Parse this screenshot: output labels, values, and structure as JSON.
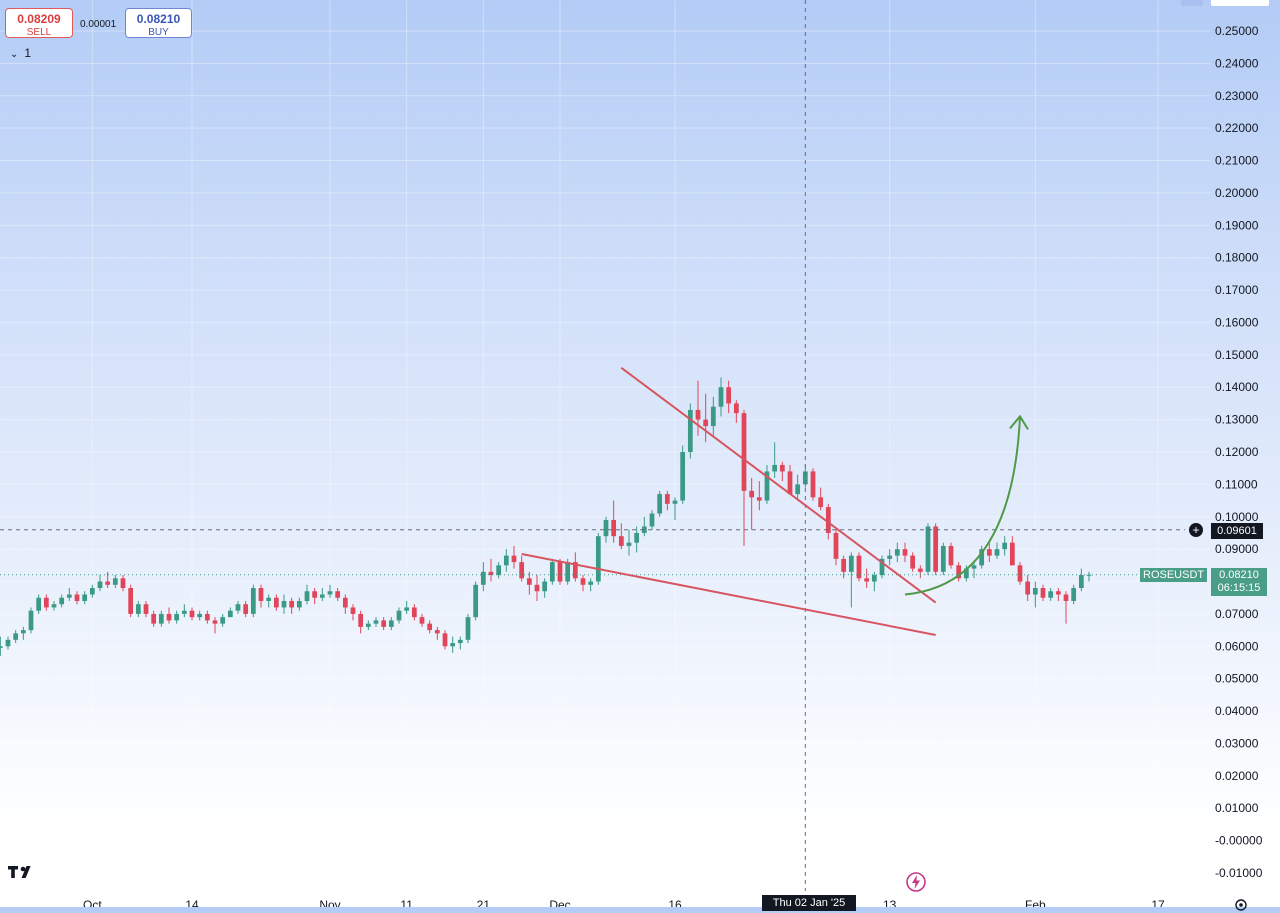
{
  "trade": {
    "sell_price": "0.08209",
    "sell_label": "SELL",
    "spread": "0.00001",
    "buy_price": "0.08210",
    "buy_label": "BUY",
    "interval": "1"
  },
  "symbol": "ROSEUSDT",
  "last_price": "0.08210",
  "countdown": "06:15:15",
  "crosshair": {
    "price": "0.09601",
    "date": "Thu 02 Jan '25"
  },
  "colors": {
    "up": "#3b9a86",
    "down": "#e0455a",
    "trendline": "#d65560",
    "arrow": "#4f9a47",
    "tag_green": "#4a9e88",
    "tag_dark": "#131722"
  },
  "chart_data": {
    "type": "candlestick",
    "symbol": "ROSEUSDT",
    "interval": "1D",
    "ylim": [
      -0.015,
      0.26
    ],
    "y_ticks": [
      -0.01,
      0.0,
      0.01,
      0.02,
      0.03,
      0.04,
      0.05,
      0.06,
      0.07,
      0.08,
      0.09,
      0.1,
      0.11,
      0.12,
      0.13,
      0.14,
      0.15,
      0.16,
      0.17,
      0.18,
      0.19,
      0.2,
      0.21,
      0.22,
      0.23,
      0.24,
      0.25
    ],
    "y_tick_labels": [
      "-0.01000",
      "-0.00000",
      "0.01000",
      "0.02000",
      "0.03000",
      "0.04000",
      "0.05000",
      "0.06000",
      "0.07000",
      "0.08000",
      "0.09000",
      "0.10000",
      "0.11000",
      "0.12000",
      "0.13000",
      "0.14000",
      "0.15000",
      "0.16000",
      "0.17000",
      "0.18000",
      "0.19000",
      "0.20000",
      "0.21000",
      "0.22000",
      "0.23000",
      "0.24000",
      "0.25000"
    ],
    "x_start": "2024-09-19",
    "x_end": "2025-02-22",
    "x_ticks": [
      {
        "date": "2024-10-01",
        "label": "Oct"
      },
      {
        "date": "2024-10-14",
        "label": "14"
      },
      {
        "date": "2024-11-01",
        "label": "Nov"
      },
      {
        "date": "2024-11-11",
        "label": "11"
      },
      {
        "date": "2024-11-21",
        "label": "21"
      },
      {
        "date": "2024-12-01",
        "label": "Dec"
      },
      {
        "date": "2024-12-16",
        "label": "16"
      },
      {
        "date": "2025-01-13",
        "label": "13"
      },
      {
        "date": "2025-02-01",
        "label": "Feb"
      },
      {
        "date": "2025-02-17",
        "label": "17"
      }
    ],
    "first_date": "2024-09-19",
    "candles": [
      [
        0.0595,
        0.063,
        0.057,
        0.06
      ],
      [
        0.06,
        0.063,
        0.059,
        0.062
      ],
      [
        0.062,
        0.065,
        0.061,
        0.064
      ],
      [
        0.064,
        0.066,
        0.062,
        0.065
      ],
      [
        0.065,
        0.072,
        0.064,
        0.071
      ],
      [
        0.071,
        0.076,
        0.07,
        0.075
      ],
      [
        0.075,
        0.076,
        0.071,
        0.072
      ],
      [
        0.072,
        0.074,
        0.071,
        0.073
      ],
      [
        0.073,
        0.076,
        0.072,
        0.075
      ],
      [
        0.075,
        0.078,
        0.074,
        0.076
      ],
      [
        0.076,
        0.077,
        0.073,
        0.074
      ],
      [
        0.074,
        0.077,
        0.073,
        0.076
      ],
      [
        0.076,
        0.079,
        0.075,
        0.078
      ],
      [
        0.078,
        0.082,
        0.077,
        0.08
      ],
      [
        0.08,
        0.083,
        0.078,
        0.079
      ],
      [
        0.079,
        0.082,
        0.078,
        0.081
      ],
      [
        0.081,
        0.082,
        0.077,
        0.078
      ],
      [
        0.078,
        0.079,
        0.069,
        0.07
      ],
      [
        0.07,
        0.074,
        0.069,
        0.073
      ],
      [
        0.073,
        0.074,
        0.069,
        0.07
      ],
      [
        0.07,
        0.071,
        0.066,
        0.067
      ],
      [
        0.067,
        0.071,
        0.066,
        0.07
      ],
      [
        0.07,
        0.072,
        0.067,
        0.068
      ],
      [
        0.068,
        0.071,
        0.067,
        0.07
      ],
      [
        0.07,
        0.073,
        0.069,
        0.071
      ],
      [
        0.071,
        0.072,
        0.068,
        0.069
      ],
      [
        0.069,
        0.071,
        0.068,
        0.07
      ],
      [
        0.07,
        0.071,
        0.067,
        0.068
      ],
      [
        0.068,
        0.069,
        0.064,
        0.067
      ],
      [
        0.067,
        0.07,
        0.066,
        0.069
      ],
      [
        0.069,
        0.072,
        0.069,
        0.071
      ],
      [
        0.071,
        0.074,
        0.07,
        0.073
      ],
      [
        0.073,
        0.074,
        0.069,
        0.07
      ],
      [
        0.07,
        0.079,
        0.069,
        0.078
      ],
      [
        0.078,
        0.079,
        0.072,
        0.074
      ],
      [
        0.074,
        0.076,
        0.072,
        0.075
      ],
      [
        0.075,
        0.076,
        0.071,
        0.072
      ],
      [
        0.072,
        0.076,
        0.07,
        0.074
      ],
      [
        0.074,
        0.075,
        0.07,
        0.072
      ],
      [
        0.072,
        0.075,
        0.071,
        0.074
      ],
      [
        0.074,
        0.079,
        0.073,
        0.077
      ],
      [
        0.077,
        0.078,
        0.073,
        0.075
      ],
      [
        0.075,
        0.078,
        0.074,
        0.076
      ],
      [
        0.076,
        0.079,
        0.075,
        0.077
      ],
      [
        0.077,
        0.078,
        0.074,
        0.075
      ],
      [
        0.075,
        0.076,
        0.07,
        0.072
      ],
      [
        0.072,
        0.073,
        0.068,
        0.07
      ],
      [
        0.07,
        0.071,
        0.064,
        0.066
      ],
      [
        0.066,
        0.068,
        0.065,
        0.067
      ],
      [
        0.067,
        0.069,
        0.066,
        0.068
      ],
      [
        0.068,
        0.069,
        0.065,
        0.066
      ],
      [
        0.066,
        0.069,
        0.065,
        0.068
      ],
      [
        0.068,
        0.072,
        0.067,
        0.071
      ],
      [
        0.071,
        0.074,
        0.07,
        0.072
      ],
      [
        0.072,
        0.073,
        0.068,
        0.069
      ],
      [
        0.069,
        0.07,
        0.066,
        0.067
      ],
      [
        0.067,
        0.068,
        0.064,
        0.065
      ],
      [
        0.065,
        0.066,
        0.062,
        0.064
      ],
      [
        0.064,
        0.065,
        0.059,
        0.06
      ],
      [
        0.06,
        0.063,
        0.058,
        0.061
      ],
      [
        0.061,
        0.063,
        0.059,
        0.062
      ],
      [
        0.062,
        0.07,
        0.061,
        0.069
      ],
      [
        0.069,
        0.08,
        0.068,
        0.079
      ],
      [
        0.079,
        0.086,
        0.077,
        0.083
      ],
      [
        0.083,
        0.087,
        0.08,
        0.082
      ],
      [
        0.082,
        0.086,
        0.081,
        0.085
      ],
      [
        0.085,
        0.09,
        0.083,
        0.088
      ],
      [
        0.088,
        0.091,
        0.084,
        0.086
      ],
      [
        0.086,
        0.088,
        0.08,
        0.081
      ],
      [
        0.081,
        0.083,
        0.076,
        0.079
      ],
      [
        0.079,
        0.082,
        0.074,
        0.077
      ],
      [
        0.077,
        0.081,
        0.075,
        0.08
      ],
      [
        0.08,
        0.087,
        0.079,
        0.086
      ],
      [
        0.086,
        0.087,
        0.079,
        0.08
      ],
      [
        0.08,
        0.087,
        0.079,
        0.086
      ],
      [
        0.086,
        0.089,
        0.08,
        0.081
      ],
      [
        0.081,
        0.082,
        0.077,
        0.079
      ],
      [
        0.079,
        0.081,
        0.077,
        0.08
      ],
      [
        0.08,
        0.095,
        0.079,
        0.094
      ],
      [
        0.094,
        0.1,
        0.092,
        0.099
      ],
      [
        0.099,
        0.105,
        0.092,
        0.094
      ],
      [
        0.094,
        0.098,
        0.09,
        0.091
      ],
      [
        0.091,
        0.096,
        0.088,
        0.092
      ],
      [
        0.092,
        0.097,
        0.089,
        0.095
      ],
      [
        0.095,
        0.1,
        0.094,
        0.097
      ],
      [
        0.097,
        0.102,
        0.096,
        0.101
      ],
      [
        0.101,
        0.108,
        0.1,
        0.107
      ],
      [
        0.107,
        0.108,
        0.102,
        0.104
      ],
      [
        0.104,
        0.106,
        0.099,
        0.105
      ],
      [
        0.105,
        0.122,
        0.104,
        0.12
      ],
      [
        0.12,
        0.135,
        0.118,
        0.133
      ],
      [
        0.133,
        0.142,
        0.125,
        0.13
      ],
      [
        0.13,
        0.138,
        0.123,
        0.128
      ],
      [
        0.128,
        0.137,
        0.125,
        0.134
      ],
      [
        0.134,
        0.143,
        0.131,
        0.14
      ],
      [
        0.14,
        0.142,
        0.132,
        0.135
      ],
      [
        0.135,
        0.136,
        0.129,
        0.132
      ],
      [
        0.132,
        0.133,
        0.091,
        0.108
      ],
      [
        0.108,
        0.112,
        0.096,
        0.106
      ],
      [
        0.106,
        0.111,
        0.102,
        0.105
      ],
      [
        0.105,
        0.116,
        0.104,
        0.114
      ],
      [
        0.114,
        0.123,
        0.112,
        0.116
      ],
      [
        0.116,
        0.117,
        0.111,
        0.114
      ],
      [
        0.114,
        0.116,
        0.108,
        0.107
      ],
      [
        0.107,
        0.113,
        0.105,
        0.11
      ],
      [
        0.11,
        0.116,
        0.109,
        0.114
      ],
      [
        0.114,
        0.115,
        0.105,
        0.106
      ],
      [
        0.106,
        0.109,
        0.102,
        0.103
      ],
      [
        0.103,
        0.104,
        0.093,
        0.095
      ],
      [
        0.095,
        0.096,
        0.085,
        0.087
      ],
      [
        0.087,
        0.088,
        0.081,
        0.083
      ],
      [
        0.083,
        0.089,
        0.072,
        0.088
      ],
      [
        0.088,
        0.089,
        0.08,
        0.081
      ],
      [
        0.081,
        0.084,
        0.078,
        0.08
      ],
      [
        0.08,
        0.083,
        0.077,
        0.082
      ],
      [
        0.082,
        0.088,
        0.081,
        0.087
      ],
      [
        0.087,
        0.09,
        0.085,
        0.088
      ],
      [
        0.088,
        0.092,
        0.086,
        0.09
      ],
      [
        0.09,
        0.092,
        0.086,
        0.088
      ],
      [
        0.088,
        0.089,
        0.083,
        0.084
      ],
      [
        0.084,
        0.085,
        0.081,
        0.083
      ],
      [
        0.083,
        0.098,
        0.082,
        0.097
      ],
      [
        0.097,
        0.098,
        0.082,
        0.083
      ],
      [
        0.083,
        0.092,
        0.082,
        0.091
      ],
      [
        0.091,
        0.092,
        0.084,
        0.085
      ],
      [
        0.085,
        0.086,
        0.08,
        0.081
      ],
      [
        0.081,
        0.085,
        0.08,
        0.084
      ],
      [
        0.084,
        0.086,
        0.081,
        0.085
      ],
      [
        0.085,
        0.091,
        0.084,
        0.09
      ],
      [
        0.09,
        0.092,
        0.086,
        0.088
      ],
      [
        0.088,
        0.092,
        0.087,
        0.09
      ],
      [
        0.09,
        0.094,
        0.088,
        0.092
      ],
      [
        0.092,
        0.094,
        0.086,
        0.085
      ],
      [
        0.085,
        0.086,
        0.079,
        0.08
      ],
      [
        0.08,
        0.082,
        0.074,
        0.076
      ],
      [
        0.076,
        0.08,
        0.072,
        0.078
      ],
      [
        0.078,
        0.079,
        0.074,
        0.075
      ],
      [
        0.075,
        0.078,
        0.074,
        0.077
      ],
      [
        0.077,
        0.078,
        0.074,
        0.076
      ],
      [
        0.076,
        0.077,
        0.067,
        0.074
      ],
      [
        0.074,
        0.079,
        0.073,
        0.078
      ],
      [
        0.078,
        0.084,
        0.077,
        0.082
      ],
      [
        0.082,
        0.083,
        0.08,
        0.0821
      ]
    ],
    "trendlines": [
      {
        "name": "upper",
        "start": {
          "date": "2024-12-09",
          "price": 0.146
        },
        "end": {
          "date": "2025-01-19",
          "price": 0.0735
        }
      },
      {
        "name": "lower",
        "start": {
          "date": "2024-11-26",
          "price": 0.0885
        },
        "end": {
          "date": "2025-01-19",
          "price": 0.0635
        }
      }
    ],
    "projection_arrow": {
      "start": {
        "date": "2025-01-15",
        "price": 0.076
      },
      "end": {
        "date": "2025-01-30",
        "price": 0.131
      }
    },
    "crosshair": {
      "date": "2025-01-02",
      "price": 0.09601
    },
    "last_price_line": 0.0821
  }
}
